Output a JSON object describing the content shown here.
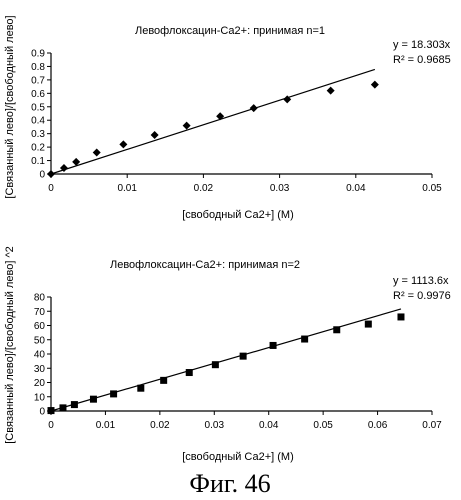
{
  "chart_data": [
    {
      "type": "scatter",
      "title": "Левофлоксацин-Са2+: принимая n=1",
      "xlabel": "[свободный Са2+] (М)",
      "ylabel": "[Связанный лево]/[свободный лево]",
      "xlim": [
        0,
        0.05
      ],
      "ylim": [
        0,
        0.9
      ],
      "xticks": [
        "0",
        "0.01",
        "0.02",
        "0.03",
        "0.04",
        "0.05"
      ],
      "yticks": [
        "0",
        "0.1",
        "0.2",
        "0.3",
        "0.4",
        "0.5",
        "0.6",
        "0.7",
        "0.8",
        "0.9"
      ],
      "marker": "diamond",
      "x": [
        0,
        0.0017,
        0.0033,
        0.006,
        0.0095,
        0.0136,
        0.0178,
        0.0222,
        0.0266,
        0.031,
        0.0367,
        0.0425
      ],
      "y": [
        0,
        0.045,
        0.09,
        0.16,
        0.22,
        0.29,
        0.36,
        0.43,
        0.49,
        0.555,
        0.62,
        0.665
      ],
      "trendline": {
        "slope": 18.303,
        "x_end": 0.0425
      },
      "equation": "y = 18.303x",
      "r2": "R² = 0.9685"
    },
    {
      "type": "scatter",
      "title": "Левофлоксацин-Са2+: принимая n=2",
      "xlabel": "[свободный Са2+] (М)",
      "ylabel": "[Связанный лево]/[свободный лево] ^2",
      "xlim": [
        0,
        0.07
      ],
      "ylim": [
        0,
        80
      ],
      "xticks": [
        "0",
        "0.01",
        "0.02",
        "0.03",
        "0.04",
        "0.05",
        "0.06",
        "0.07"
      ],
      "yticks": [
        "0",
        "10",
        "20",
        "30",
        "40",
        "50",
        "60",
        "70",
        "80"
      ],
      "marker": "square",
      "x": [
        0,
        0.0022,
        0.0043,
        0.0078,
        0.0115,
        0.0165,
        0.0207,
        0.0254,
        0.0302,
        0.0353,
        0.0408,
        0.0466,
        0.0525,
        0.0583,
        0.0643
      ],
      "y": [
        0.3,
        2.2,
        4.5,
        8.3,
        12,
        16,
        21.5,
        27,
        32.5,
        38.5,
        46,
        50.5,
        57,
        61,
        66
      ],
      "trendline": {
        "slope": 1113.6,
        "x_end": 0.0643
      },
      "equation": "y = 1113.6x",
      "r2": "R² = 0.9976"
    }
  ],
  "caption": "Фиг. 46"
}
